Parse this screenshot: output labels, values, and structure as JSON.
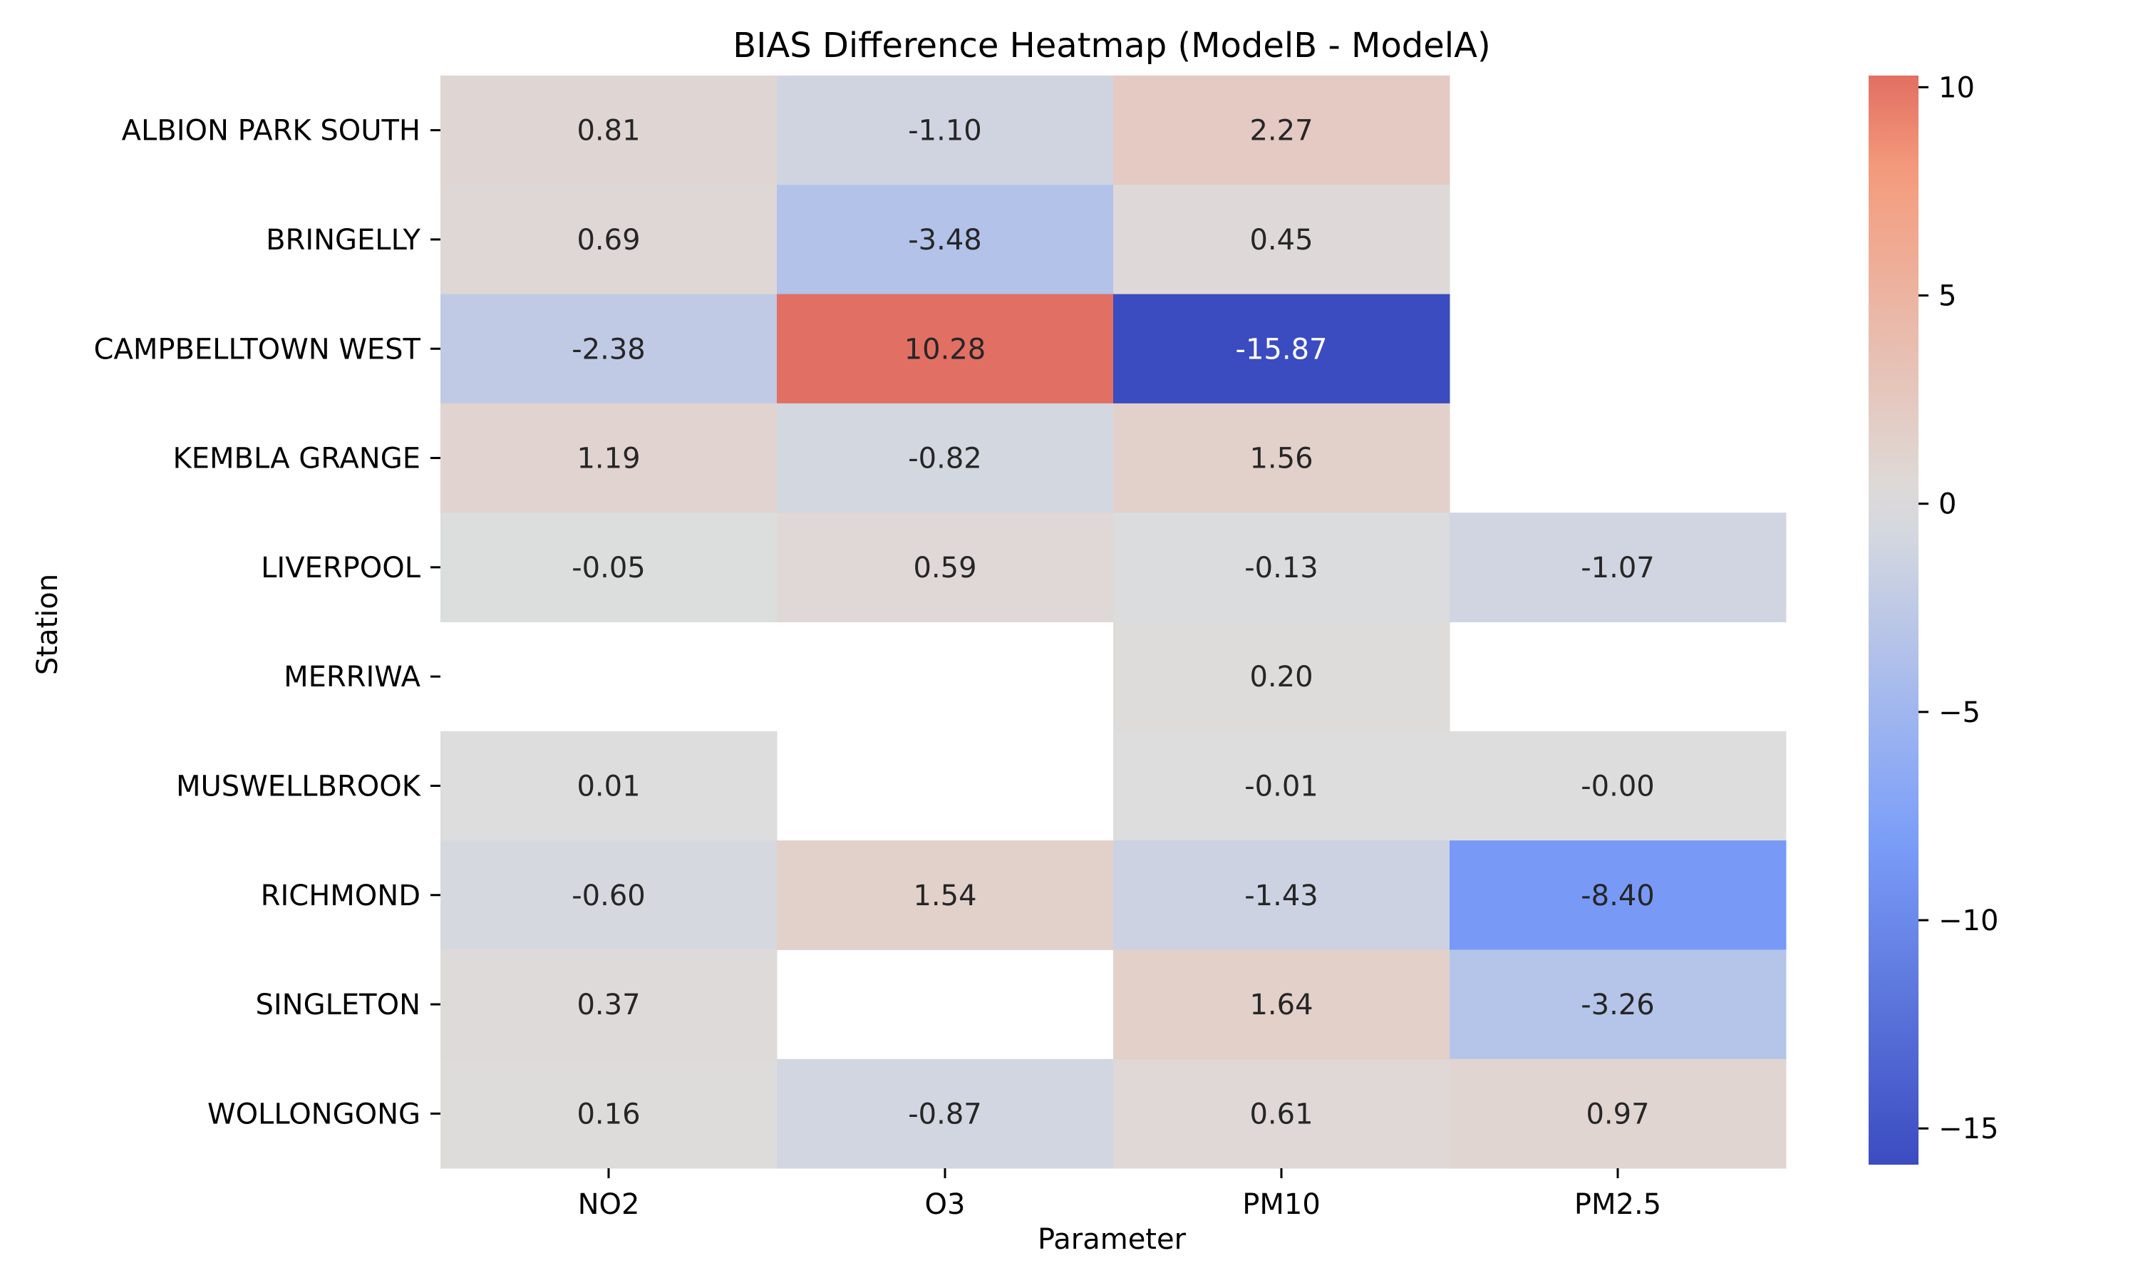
{
  "chart_data": {
    "type": "heatmap",
    "title": "BIAS Difference Heatmap (ModelB - ModelA)",
    "xlabel": "Parameter",
    "ylabel": "Station",
    "columns": [
      "NO2",
      "O3",
      "PM10",
      "PM2.5"
    ],
    "rows": [
      "ALBION PARK SOUTH",
      "BRINGELLY",
      "CAMPBELLTOWN WEST",
      "KEMBLA GRANGE",
      "LIVERPOOL",
      "MERRIWA",
      "MUSWELLBROOK",
      "RICHMOND",
      "SINGLETON",
      "WOLLONGONG"
    ],
    "values": [
      [
        0.81,
        -1.1,
        2.27,
        null
      ],
      [
        0.69,
        -3.48,
        0.45,
        null
      ],
      [
        -2.38,
        10.28,
        -15.87,
        null
      ],
      [
        1.19,
        -0.82,
        1.56,
        null
      ],
      [
        -0.05,
        0.59,
        -0.13,
        -1.07
      ],
      [
        null,
        null,
        0.2,
        null
      ],
      [
        0.01,
        null,
        -0.01,
        -0.0
      ],
      [
        -0.6,
        1.54,
        -1.43,
        -8.4
      ],
      [
        0.37,
        null,
        1.64,
        -3.26
      ],
      [
        0.16,
        -0.87,
        0.61,
        0.97
      ]
    ],
    "value_labels": [
      [
        "0.81",
        "-1.10",
        "2.27",
        ""
      ],
      [
        "0.69",
        "-3.48",
        "0.45",
        ""
      ],
      [
        "-2.38",
        "10.28",
        "-15.87",
        ""
      ],
      [
        "1.19",
        "-0.82",
        "1.56",
        ""
      ],
      [
        "-0.05",
        "0.59",
        "-0.13",
        "-1.07"
      ],
      [
        "",
        "",
        "0.20",
        ""
      ],
      [
        "0.01",
        "",
        "-0.01",
        "-0.00"
      ],
      [
        "-0.60",
        "1.54",
        "-1.43",
        "-8.40"
      ],
      [
        "0.37",
        "",
        "1.64",
        "-3.26"
      ],
      [
        "0.16",
        "-0.87",
        "0.61",
        "0.97"
      ]
    ],
    "colormap": "coolwarm",
    "vmin": -15.87,
    "vmax": 10.28,
    "center": 0,
    "colorbar_ticks": [
      10,
      5,
      0,
      -5,
      -10,
      -15
    ],
    "colorbar_tick_labels": [
      "10",
      "5",
      "0",
      "−5",
      "−10",
      "−15"
    ],
    "colors": {
      "cool_end": "#3b4cc0",
      "neutral": "#dddddd",
      "warm_end": "#b40426",
      "missing": "#ffffff"
    }
  }
}
